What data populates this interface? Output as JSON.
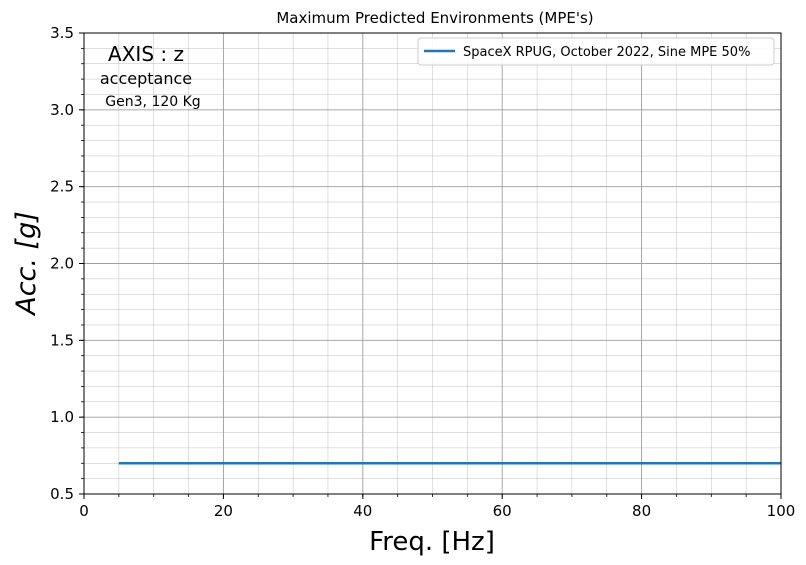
{
  "chart_data": {
    "type": "line",
    "title": "Maximum Predicted Environments (MPE's)",
    "xlabel": "Freq. [Hz]",
    "ylabel": "Acc. [g]",
    "xlim": [
      0,
      100
    ],
    "ylim": [
      0.5,
      3.5
    ],
    "x_ticks": [
      0,
      20,
      40,
      60,
      80,
      100
    ],
    "x_tick_labels": [
      "0",
      "20",
      "40",
      "60",
      "80",
      "100"
    ],
    "y_ticks": [
      0.5,
      1.0,
      1.5,
      2.0,
      2.5,
      3.0,
      3.5
    ],
    "y_tick_labels": [
      "0.5",
      "1.0",
      "1.5",
      "2.0",
      "2.5",
      "3.0",
      "3.5"
    ],
    "grid": true,
    "minor_grid": true,
    "legend_position": "top-right",
    "series": [
      {
        "name": "SpaceX RPUG, October 2022, Sine MPE 50%",
        "color": "#1f77b4",
        "x": [
          5,
          100
        ],
        "y": [
          0.7,
          0.7
        ]
      }
    ],
    "annotations": [
      "AXIS : z",
      "acceptance",
      "Gen3, 120 Kg"
    ]
  }
}
